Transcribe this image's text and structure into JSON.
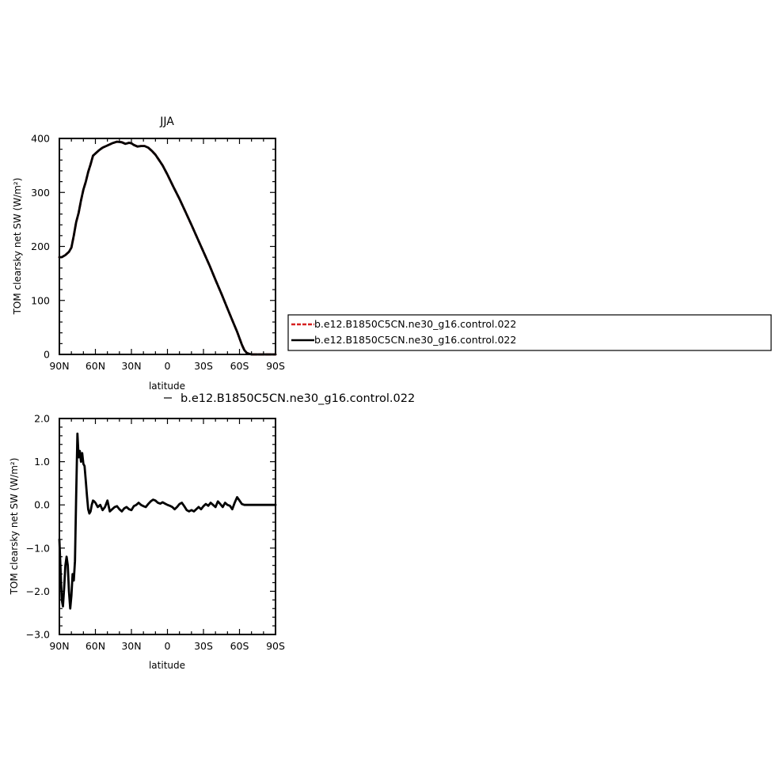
{
  "chart_data": [
    {
      "type": "line",
      "title": "JJA",
      "xlabel": "latitude",
      "ylabel": "TOM clearsky net SW (W/m²)",
      "xlim": [
        90,
        -90
      ],
      "ylim": [
        0,
        400
      ],
      "x_ticks": [
        90,
        60,
        30,
        0,
        -30,
        -60,
        -90
      ],
      "x_tick_labels": [
        "90N",
        "60N",
        "30N",
        "0",
        "30S",
        "60S",
        "90S"
      ],
      "y_ticks": [
        0,
        100,
        200,
        300,
        400
      ],
      "y_tick_labels": [
        "0",
        "100",
        "200",
        "300",
        "400"
      ],
      "grid": false,
      "legend": "right",
      "series": [
        {
          "name": "b.e12.B1850C5CN.ne30_g16.control.022",
          "color": "#d62020",
          "style": "dashed",
          "x": [
            90,
            88,
            85,
            82,
            80,
            78,
            76,
            74,
            72,
            70,
            68,
            66,
            64,
            62,
            60,
            57,
            54,
            50,
            46,
            42,
            38,
            35,
            32,
            30,
            28,
            25,
            22,
            19,
            16,
            13,
            10,
            7,
            4,
            0,
            -5,
            -10,
            -15,
            -20,
            -25,
            -30,
            -35,
            -40,
            -45,
            -50,
            -55,
            -58,
            -60,
            -62,
            -64,
            -66,
            -68,
            -70,
            -72,
            -74,
            -78,
            -82,
            -86,
            -90
          ],
          "values": [
            180,
            180,
            184,
            190,
            198,
            220,
            245,
            262,
            285,
            305,
            320,
            338,
            352,
            368,
            372,
            378,
            383,
            387,
            391,
            394,
            393,
            390,
            392,
            391,
            388,
            385,
            386,
            386,
            383,
            377,
            370,
            360,
            350,
            333,
            310,
            288,
            264,
            240,
            215,
            190,
            165,
            138,
            112,
            85,
            58,
            42,
            30,
            18,
            8,
            3,
            1,
            0,
            0,
            0,
            0,
            0,
            0,
            0
          ]
        },
        {
          "name": "b.e12.B1850C5CN.ne30_g16.control.022",
          "color": "#000000",
          "style": "solid",
          "x": [
            90,
            88,
            85,
            82,
            80,
            78,
            76,
            74,
            72,
            70,
            68,
            66,
            64,
            62,
            60,
            57,
            54,
            50,
            46,
            42,
            38,
            35,
            32,
            30,
            28,
            25,
            22,
            19,
            16,
            13,
            10,
            7,
            4,
            0,
            -5,
            -10,
            -15,
            -20,
            -25,
            -30,
            -35,
            -40,
            -45,
            -50,
            -55,
            -58,
            -60,
            -62,
            -64,
            -66,
            -68,
            -70,
            -72,
            -74,
            -78,
            -82,
            -86,
            -90
          ],
          "values": [
            180,
            180,
            184,
            190,
            198,
            220,
            245,
            262,
            285,
            305,
            320,
            338,
            352,
            368,
            372,
            378,
            383,
            387,
            391,
            394,
            393,
            390,
            392,
            391,
            388,
            385,
            386,
            386,
            383,
            377,
            370,
            360,
            350,
            333,
            310,
            288,
            264,
            240,
            215,
            190,
            165,
            138,
            112,
            85,
            58,
            42,
            30,
            18,
            8,
            3,
            1,
            0,
            0,
            0,
            0,
            0,
            0,
            0
          ]
        }
      ]
    },
    {
      "type": "line",
      "title": "",
      "xlabel": "latitude",
      "ylabel": "TOM clearsky net SW (W/m²)",
      "xlim": [
        90,
        -90
      ],
      "ylim": [
        -3.0,
        2.0
      ],
      "x_ticks": [
        90,
        60,
        30,
        0,
        -30,
        -60,
        -90
      ],
      "x_tick_labels": [
        "90N",
        "60N",
        "30N",
        "0",
        "30S",
        "60S",
        "90S"
      ],
      "y_ticks": [
        -3.0,
        -2.0,
        -1.0,
        0.0,
        1.0,
        2.0
      ],
      "y_tick_labels": [
        "−3.0",
        "−2.0",
        "−1.0",
        "0.0",
        "1.0",
        "2.0"
      ],
      "grid": false,
      "legend": "top",
      "series": [
        {
          "name": "b.e12.B1850C5CN.ne30_g16.control.022",
          "color": "#000000",
          "style": "solid",
          "x": [
            90,
            89,
            88,
            87,
            86,
            85,
            84,
            83,
            82,
            81,
            80,
            79,
            78,
            77,
            76,
            75,
            74,
            73,
            72,
            71,
            70,
            69,
            68,
            67,
            66,
            65,
            64,
            63,
            62,
            61,
            60,
            58,
            56,
            54,
            52,
            50,
            48,
            46,
            44,
            42,
            40,
            38,
            36,
            34,
            32,
            30,
            28,
            26,
            24,
            22,
            20,
            18,
            16,
            14,
            12,
            10,
            8,
            6,
            4,
            2,
            0,
            -2,
            -4,
            -6,
            -8,
            -10,
            -12,
            -14,
            -16,
            -18,
            -20,
            -22,
            -24,
            -26,
            -28,
            -30,
            -32,
            -34,
            -36,
            -38,
            -40,
            -42,
            -44,
            -46,
            -48,
            -50,
            -52,
            -54,
            -56,
            -58,
            -60,
            -62,
            -64,
            -66,
            -68,
            -70,
            -72,
            -75,
            -80,
            -85,
            -90
          ],
          "values": [
            -0.8,
            -1.5,
            -2.2,
            -2.35,
            -1.9,
            -1.4,
            -1.2,
            -1.4,
            -2.0,
            -2.4,
            -2.1,
            -1.6,
            -1.75,
            -1.3,
            0.2,
            1.65,
            1.1,
            1.25,
            1.0,
            1.2,
            0.95,
            0.9,
            0.55,
            0.2,
            -0.1,
            -0.2,
            -0.15,
            0.0,
            0.1,
            0.08,
            0.05,
            -0.05,
            0.0,
            -0.12,
            -0.05,
            0.1,
            -0.15,
            -0.1,
            -0.05,
            -0.03,
            -0.1,
            -0.15,
            -0.08,
            -0.05,
            -0.1,
            -0.12,
            -0.03,
            0.0,
            0.05,
            0.0,
            -0.03,
            -0.05,
            0.02,
            0.08,
            0.12,
            0.1,
            0.05,
            0.03,
            0.06,
            0.03,
            0.0,
            -0.02,
            -0.05,
            -0.1,
            -0.05,
            0.02,
            0.05,
            -0.03,
            -0.12,
            -0.15,
            -0.12,
            -0.15,
            -0.1,
            -0.05,
            -0.1,
            -0.03,
            0.02,
            -0.02,
            0.05,
            0.0,
            -0.05,
            0.08,
            0.02,
            -0.05,
            0.05,
            0.0,
            -0.02,
            -0.1,
            0.05,
            0.18,
            0.1,
            0.02,
            0.0,
            0.0,
            0.0,
            0.0,
            0.0,
            0.0,
            0.0,
            0.0,
            0.0
          ]
        }
      ]
    }
  ]
}
